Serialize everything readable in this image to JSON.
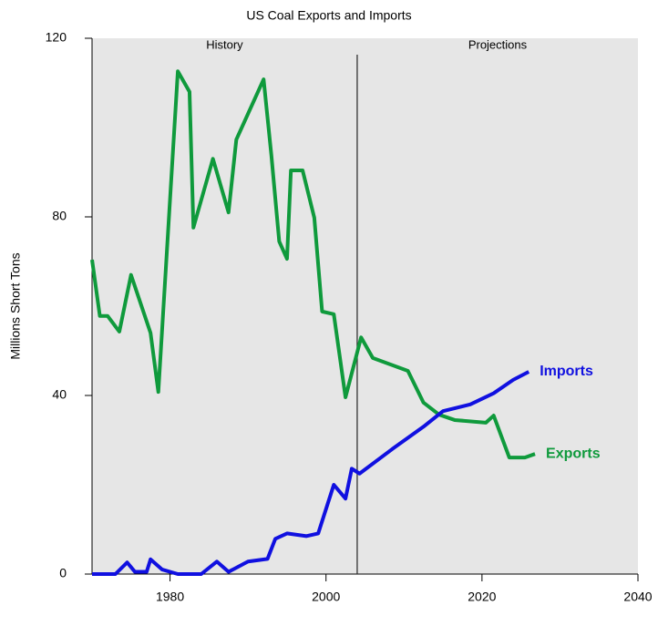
{
  "chart_data": {
    "type": "line",
    "title": "US Coal Exports and Imports",
    "y_label": "Millions Short Tons",
    "xlim": [
      1970,
      2040
    ],
    "xticks": [
      1980,
      2000,
      2020,
      2040
    ],
    "ylim": [
      0,
      120
    ],
    "yticks": [
      0,
      40,
      80,
      120
    ],
    "divider_x": 2004,
    "divider_labels": [
      "History",
      "Projections"
    ],
    "series": [
      {
        "name": "Exports",
        "color": "#0f9a3c",
        "x": [
          1970,
          1971,
          1972,
          1973.5,
          1975,
          1977.5,
          1978.5,
          1981,
          1982.5,
          1983,
          1985.5,
          1987.5,
          1988.5,
          1992,
          1993,
          1994,
          1995,
          1995.5,
          1997,
          1998.5,
          1999.5,
          2001,
          2002.5,
          2004.5,
          2006,
          2010.5,
          2012.5,
          2014.5,
          2016.5,
          2020.5,
          2021.5,
          2023.5,
          2025.5,
          2026.8
        ],
        "values": [
          70.4,
          57.8,
          57.8,
          54.3,
          67,
          54,
          40.8,
          112.6,
          108,
          77.6,
          93,
          81,
          97.3,
          110.8,
          93.7,
          74.5,
          70.6,
          90.4,
          90.4,
          79.8,
          58.8,
          58.2,
          39.6,
          53,
          48.4,
          45.5,
          38.4,
          35.7,
          34.5,
          33.9,
          35.5,
          26.1,
          26.1,
          26.9
        ]
      },
      {
        "name": "Imports",
        "color": "#1010e0",
        "x": [
          1970,
          1973,
          1974.5,
          1975.5,
          1977,
          1977.5,
          1979,
          1981,
          1984,
          1986,
          1987.5,
          1990,
          1992.5,
          1993.5,
          1995,
          1997.5,
          1999,
          2001,
          2002.5,
          2003.3,
          2004.3,
          2008.5,
          2012.5,
          2015,
          2018.5,
          2021.5,
          2024,
          2026
        ],
        "values": [
          0,
          0,
          2.6,
          0.5,
          0.5,
          3.3,
          1,
          0,
          0,
          2.8,
          0.5,
          2.8,
          3.4,
          7.9,
          9.1,
          8.5,
          9.1,
          20,
          16.9,
          23.6,
          22.5,
          28,
          33,
          36.5,
          38,
          40.5,
          43.5,
          45.3
        ]
      }
    ]
  }
}
